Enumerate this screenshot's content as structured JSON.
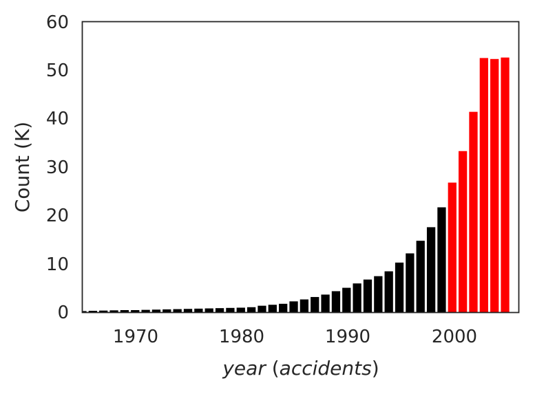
{
  "chart_data": {
    "type": "bar",
    "ylabel": "Count (K)",
    "xlabel": {
      "prefix": "year",
      "open": " (",
      "inner": "accidents",
      "close": ")"
    },
    "xlim": [
      1965,
      2006.3
    ],
    "ylim": [
      0,
      60
    ],
    "xticks": [
      "1970",
      "1980",
      "1990",
      "2000"
    ],
    "yticks": [
      "0",
      "10",
      "20",
      "30",
      "40",
      "50",
      "60"
    ],
    "grid": false,
    "colors": {
      "before_2000": "#000000",
      "from_2000": "#ff0000",
      "axis": "#262626"
    },
    "series": [
      {
        "color": "#000000",
        "x": [
          1965,
          1966,
          1967,
          1968,
          1969,
          1970,
          1971,
          1972,
          1973,
          1974,
          1975,
          1976,
          1977,
          1978,
          1979,
          1980,
          1981,
          1982,
          1983,
          1984,
          1985,
          1986,
          1987,
          1988,
          1989,
          1990,
          1991,
          1992,
          1993,
          1994,
          1995,
          1996,
          1997,
          1998,
          1999
        ],
        "values": [
          0.3,
          0.35,
          0.4,
          0.45,
          0.5,
          0.5,
          0.55,
          0.6,
          0.65,
          0.7,
          0.75,
          0.8,
          0.85,
          0.9,
          0.95,
          1.0,
          1.1,
          1.4,
          1.6,
          1.8,
          2.3,
          2.7,
          3.2,
          3.7,
          4.4,
          5.1,
          6.0,
          6.8,
          7.5,
          8.5,
          10.3,
          12.2,
          14.8,
          17.6,
          21.7
        ]
      },
      {
        "color": "#ff0000",
        "x": [
          2000,
          2001,
          2002,
          2003,
          2004,
          2005
        ],
        "values": [
          26.8,
          33.3,
          41.4,
          52.5,
          52.3,
          52.6
        ]
      }
    ]
  }
}
